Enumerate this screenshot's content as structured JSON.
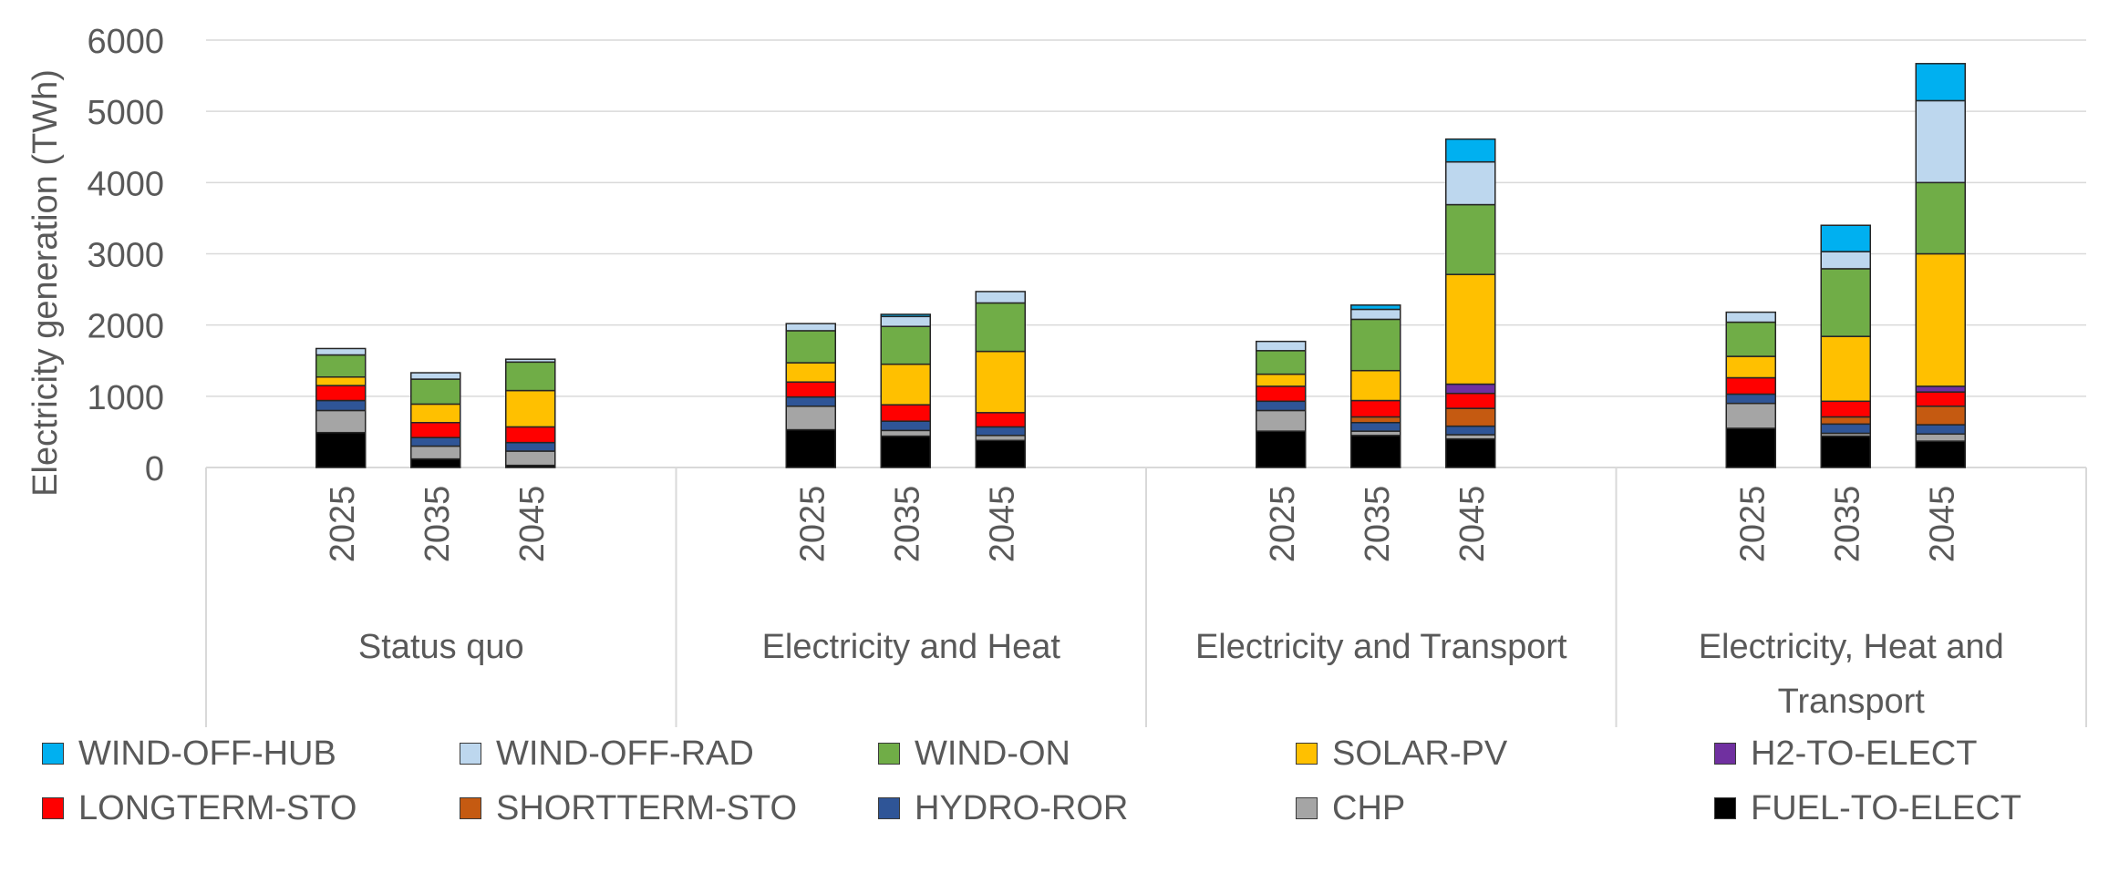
{
  "chart_data": {
    "type": "bar",
    "stacked": true,
    "title": "",
    "ylabel": "Electricity generation (TWh)",
    "xlabel": "",
    "ylim": [
      0,
      6000
    ],
    "yticks": [
      0,
      1000,
      2000,
      3000,
      4000,
      5000,
      6000
    ],
    "grid": true,
    "legend_position": "bottom",
    "groups": [
      {
        "name": "Status quo",
        "categories": [
          "2025",
          "2035",
          "2045"
        ]
      },
      {
        "name": "Electricity and Heat",
        "categories": [
          "2025",
          "2035",
          "2045"
        ]
      },
      {
        "name": "Electricity and Transport",
        "categories": [
          "2025",
          "2035",
          "2045"
        ]
      },
      {
        "name": "Electricity, Heat and Transport",
        "categories": [
          "2025",
          "2035",
          "2045"
        ]
      }
    ],
    "series": [
      {
        "name": "FUEL-TO-ELECT",
        "color": "#000000",
        "values": [
          490,
          120,
          30,
          530,
          440,
          380,
          510,
          450,
          400,
          550,
          440,
          370
        ]
      },
      {
        "name": "CHP",
        "color": "#a5a5a5",
        "values": [
          310,
          180,
          200,
          330,
          80,
          70,
          290,
          60,
          60,
          350,
          40,
          100
        ]
      },
      {
        "name": "HYDRO-ROR",
        "color": "#2f5597",
        "values": [
          140,
          120,
          120,
          130,
          130,
          120,
          130,
          120,
          120,
          130,
          130,
          130
        ]
      },
      {
        "name": "SHORTTERM-STO",
        "color": "#c55a11",
        "values": [
          0,
          0,
          0,
          0,
          0,
          0,
          0,
          80,
          250,
          0,
          100,
          260
        ]
      },
      {
        "name": "LONGTERM-STO",
        "color": "#ff0000",
        "values": [
          210,
          210,
          220,
          210,
          230,
          200,
          210,
          230,
          210,
          230,
          220,
          200
        ]
      },
      {
        "name": "H2-TO-ELECT",
        "color": "#7030a0",
        "values": [
          0,
          0,
          0,
          0,
          0,
          0,
          0,
          0,
          130,
          0,
          0,
          80
        ]
      },
      {
        "name": "SOLAR-PV",
        "color": "#ffc000",
        "values": [
          120,
          260,
          510,
          270,
          570,
          860,
          170,
          420,
          1540,
          300,
          910,
          1860
        ]
      },
      {
        "name": "WIND-ON",
        "color": "#70ad47",
        "values": [
          310,
          350,
          400,
          450,
          530,
          680,
          330,
          720,
          980,
          480,
          950,
          1000
        ]
      },
      {
        "name": "WIND-OFF-RAD",
        "color": "#bdd7ee",
        "values": [
          90,
          90,
          40,
          100,
          140,
          160,
          130,
          140,
          600,
          140,
          240,
          1150
        ]
      },
      {
        "name": "WIND-OFF-HUB",
        "color": "#00b0f0",
        "values": [
          0,
          0,
          0,
          0,
          30,
          0,
          0,
          60,
          320,
          0,
          370,
          520
        ]
      }
    ],
    "legend_order": [
      "WIND-OFF-HUB",
      "WIND-OFF-RAD",
      "WIND-ON",
      "SOLAR-PV",
      "H2-TO-ELECT",
      "LONGTERM-STO",
      "SHORTTERM-STO",
      "HYDRO-ROR",
      "CHP",
      "FUEL-TO-ELECT"
    ]
  }
}
